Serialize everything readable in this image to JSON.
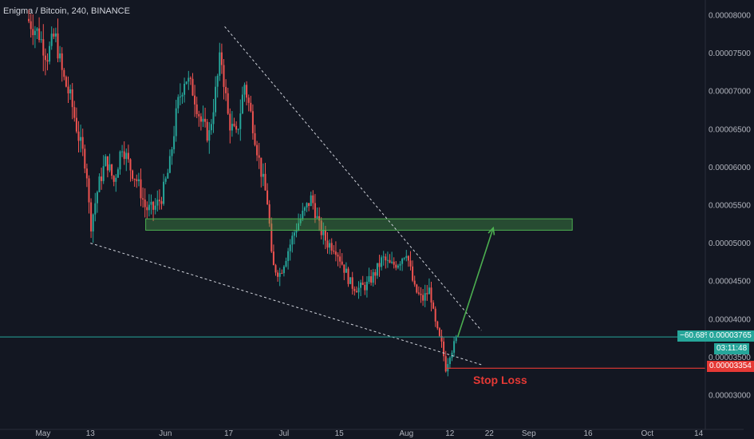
{
  "title": "Enigma / Bitcoin, 240, BINANCE",
  "colors": {
    "background": "#131722",
    "up": "#26a69a",
    "down": "#ef5350",
    "zone": "#4caf50",
    "arrow": "#4caf50",
    "stop": "#e53935",
    "price_line": "#26a69a",
    "trendline": "#d1d4dc"
  },
  "price_tag": {
    "pct": "−60.68%",
    "price": "0.00003765",
    "timer": "03:11:48"
  },
  "stop_tag": {
    "price": "0.00003354",
    "label": "Stop Loss"
  },
  "chart_data": {
    "type": "candlestick",
    "yaxis": {
      "min": 2.75e-05,
      "max": 8.25e-05,
      "ticks": [
        "0.00003000",
        "0.00003500",
        "0.00004000",
        "0.00004500",
        "0.00005000",
        "0.00005500",
        "0.00006000",
        "0.00006500",
        "0.00007000",
        "0.00007500",
        "0.00008000"
      ]
    },
    "xaxis": {
      "ticks": [
        {
          "label": "May",
          "date": "2019-05-01"
        },
        {
          "label": "13",
          "date": "2019-05-13"
        },
        {
          "label": "Jun",
          "date": "2019-06-01"
        },
        {
          "label": "17",
          "date": "2019-06-17"
        },
        {
          "label": "Jul",
          "date": "2019-07-01"
        },
        {
          "label": "15",
          "date": "2019-07-15"
        },
        {
          "label": "Aug",
          "date": "2019-08-01"
        },
        {
          "label": "12",
          "date": "2019-08-12"
        },
        {
          "label": "22",
          "date": "2019-08-22"
        },
        {
          "label": "Sep",
          "date": "2019-09-01"
        },
        {
          "label": "16",
          "date": "2019-09-16"
        },
        {
          "label": "Oct",
          "date": "2019-10-01"
        },
        {
          "label": "14",
          "date": "2019-10-14"
        }
      ]
    },
    "price_path": [
      [
        "2019-04-27",
        7.95e-05
      ],
      [
        "2019-04-30",
        7.75e-05
      ],
      [
        "2019-05-02",
        7.45e-05
      ],
      [
        "2019-05-04",
        7.75e-05
      ],
      [
        "2019-05-06",
        7.2e-05
      ],
      [
        "2019-05-08",
        6.9e-05
      ],
      [
        "2019-05-10",
        6.4e-05
      ],
      [
        "2019-05-12",
        6e-05
      ],
      [
        "2019-05-13",
        5.2e-05
      ],
      [
        "2019-05-15",
        5.75e-05
      ],
      [
        "2019-05-17",
        6.1e-05
      ],
      [
        "2019-05-19",
        5.8e-05
      ],
      [
        "2019-05-21",
        6.3e-05
      ],
      [
        "2019-05-23",
        6e-05
      ],
      [
        "2019-05-25",
        5.8e-05
      ],
      [
        "2019-05-27",
        5.45e-05
      ],
      [
        "2019-05-29",
        5.45e-05
      ],
      [
        "2019-05-31",
        5.6e-05
      ],
      [
        "2019-06-02",
        6e-05
      ],
      [
        "2019-06-04",
        6.8e-05
      ],
      [
        "2019-06-06",
        7.2e-05
      ],
      [
        "2019-06-08",
        7e-05
      ],
      [
        "2019-06-10",
        6.6e-05
      ],
      [
        "2019-06-12",
        6.4e-05
      ],
      [
        "2019-06-14",
        7.1e-05
      ],
      [
        "2019-06-15",
        7.5e-05
      ],
      [
        "2019-06-17",
        6.6e-05
      ],
      [
        "2019-06-19",
        6.4e-05
      ],
      [
        "2019-06-21",
        7.1e-05
      ],
      [
        "2019-06-23",
        6.6e-05
      ],
      [
        "2019-06-25",
        6e-05
      ],
      [
        "2019-06-27",
        5.5e-05
      ],
      [
        "2019-06-28",
        4.7e-05
      ],
      [
        "2019-06-30",
        4.6e-05
      ],
      [
        "2019-07-02",
        4.9e-05
      ],
      [
        "2019-07-04",
        5.2e-05
      ],
      [
        "2019-07-06",
        5.4e-05
      ],
      [
        "2019-07-08",
        5.6e-05
      ],
      [
        "2019-07-10",
        5.2e-05
      ],
      [
        "2019-07-12",
        5e-05
      ],
      [
        "2019-07-14",
        4.95e-05
      ],
      [
        "2019-07-16",
        4.7e-05
      ],
      [
        "2019-07-18",
        4.45e-05
      ],
      [
        "2019-07-20",
        4.4e-05
      ],
      [
        "2019-07-22",
        4.45e-05
      ],
      [
        "2019-07-24",
        4.6e-05
      ],
      [
        "2019-07-26",
        4.8e-05
      ],
      [
        "2019-07-28",
        4.7e-05
      ],
      [
        "2019-07-30",
        4.75e-05
      ],
      [
        "2019-08-01",
        4.9e-05
      ],
      [
        "2019-08-03",
        4.4e-05
      ],
      [
        "2019-08-05",
        4.25e-05
      ],
      [
        "2019-08-07",
        4.4e-05
      ],
      [
        "2019-08-08",
        4e-05
      ],
      [
        "2019-08-09",
        3.8e-05
      ],
      [
        "2019-08-10",
        3.65e-05
      ],
      [
        "2019-08-11",
        3.354e-05
      ],
      [
        "2019-08-12",
        3.55e-05
      ],
      [
        "2019-08-13",
        3.65e-05
      ],
      [
        "2019-08-14",
        3.765e-05
      ]
    ],
    "annotations": {
      "resistance_zone": {
        "x1": "2019-05-27",
        "x2": "2019-09-12",
        "y_low": 5.17e-05,
        "y_high": 5.32e-05
      },
      "upper_trendline": {
        "from": [
          "2019-06-16",
          7.85e-05
        ],
        "to": [
          "2019-08-20",
          3.85e-05
        ]
      },
      "lower_trendline": {
        "from": [
          "2019-05-13",
          5e-05
        ],
        "to": [
          "2019-08-20",
          3.4e-05
        ]
      },
      "target_arrow": {
        "from": [
          "2019-08-14",
          3.765e-05
        ],
        "to": [
          "2019-08-23",
          5.2e-05
        ]
      },
      "stop_loss": {
        "from": [
          "2019-08-11",
          3.354e-05
        ],
        "to": "right-edge",
        "price": 3.354e-05
      },
      "last_price_line": {
        "price": 3.765e-05
      }
    },
    "grid": false,
    "legend": "none"
  }
}
